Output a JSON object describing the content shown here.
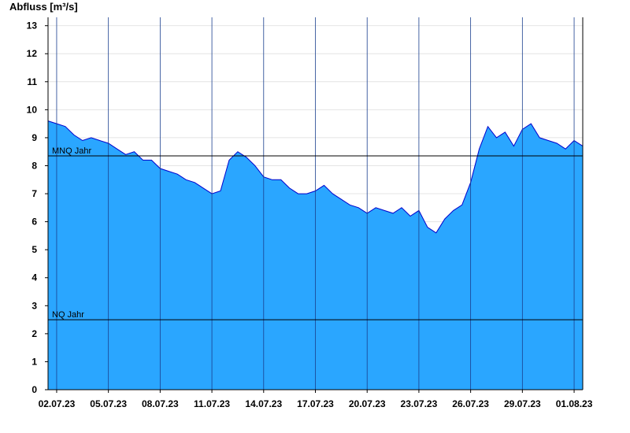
{
  "chart_data": {
    "type": "area",
    "ylabel": "Abfluss [m³/s]",
    "xlabel": "",
    "title": "",
    "ylim": [
      0,
      13.3
    ],
    "yticks": [
      0,
      1,
      2,
      3,
      4,
      5,
      6,
      7,
      8,
      9,
      10,
      11,
      12,
      13
    ],
    "xlim": [
      "2023-07-01T12:00",
      "2023-08-01T12:00"
    ],
    "xticks": [
      {
        "label": "02.07.23",
        "date": "2023-07-02"
      },
      {
        "label": "05.07.23",
        "date": "2023-07-05"
      },
      {
        "label": "08.07.23",
        "date": "2023-07-08"
      },
      {
        "label": "11.07.23",
        "date": "2023-07-11"
      },
      {
        "label": "14.07.23",
        "date": "2023-07-14"
      },
      {
        "label": "17.07.23",
        "date": "2023-07-17"
      },
      {
        "label": "20.07.23",
        "date": "2023-07-20"
      },
      {
        "label": "23.07.23",
        "date": "2023-07-23"
      },
      {
        "label": "26.07.23",
        "date": "2023-07-26"
      },
      {
        "label": "29.07.23",
        "date": "2023-07-29"
      },
      {
        "label": "01.08.23",
        "date": "2023-08-01"
      }
    ],
    "reference_lines": [
      {
        "label": "MNQ Jahr",
        "value": 8.35
      },
      {
        "label": "NQ Jahr",
        "value": 2.5
      }
    ],
    "series": [
      {
        "color": "#2aa6ff",
        "line_color": "#0000cc",
        "x": [
          "2023-07-01T12:00",
          "2023-07-02T00:00",
          "2023-07-02T12:00",
          "2023-07-03T00:00",
          "2023-07-03T12:00",
          "2023-07-04T00:00",
          "2023-07-04T12:00",
          "2023-07-05T00:00",
          "2023-07-05T12:00",
          "2023-07-06T00:00",
          "2023-07-06T12:00",
          "2023-07-07T00:00",
          "2023-07-07T12:00",
          "2023-07-08T00:00",
          "2023-07-08T12:00",
          "2023-07-09T00:00",
          "2023-07-09T12:00",
          "2023-07-10T00:00",
          "2023-07-10T12:00",
          "2023-07-11T00:00",
          "2023-07-11T12:00",
          "2023-07-12T00:00",
          "2023-07-12T12:00",
          "2023-07-13T00:00",
          "2023-07-13T12:00",
          "2023-07-14T00:00",
          "2023-07-14T12:00",
          "2023-07-15T00:00",
          "2023-07-15T12:00",
          "2023-07-16T00:00",
          "2023-07-16T12:00",
          "2023-07-17T00:00",
          "2023-07-17T12:00",
          "2023-07-18T00:00",
          "2023-07-18T12:00",
          "2023-07-19T00:00",
          "2023-07-19T12:00",
          "2023-07-20T00:00",
          "2023-07-20T12:00",
          "2023-07-21T00:00",
          "2023-07-21T12:00",
          "2023-07-22T00:00",
          "2023-07-22T12:00",
          "2023-07-23T00:00",
          "2023-07-23T12:00",
          "2023-07-24T00:00",
          "2023-07-24T12:00",
          "2023-07-25T00:00",
          "2023-07-25T12:00",
          "2023-07-26T00:00",
          "2023-07-26T12:00",
          "2023-07-27T00:00",
          "2023-07-27T12:00",
          "2023-07-28T00:00",
          "2023-07-28T12:00",
          "2023-07-29T00:00",
          "2023-07-29T12:00",
          "2023-07-30T00:00",
          "2023-07-30T12:00",
          "2023-07-31T00:00",
          "2023-07-31T12:00",
          "2023-08-01T00:00",
          "2023-08-01T12:00"
        ],
        "values": [
          9.6,
          9.5,
          9.4,
          9.1,
          8.9,
          9.0,
          8.9,
          8.8,
          8.6,
          8.4,
          8.5,
          8.2,
          8.2,
          7.9,
          7.8,
          7.7,
          7.5,
          7.4,
          7.2,
          7.0,
          7.1,
          8.2,
          8.5,
          8.3,
          8.0,
          7.6,
          7.5,
          7.5,
          7.2,
          7.0,
          7.0,
          7.1,
          7.3,
          7.0,
          6.8,
          6.6,
          6.5,
          6.3,
          6.5,
          6.4,
          6.3,
          6.5,
          6.2,
          6.4,
          5.8,
          5.6,
          6.1,
          6.4,
          6.6,
          7.4,
          8.6,
          9.4,
          9.0,
          9.2,
          8.7,
          9.3,
          9.5,
          9.0,
          8.9,
          8.8,
          8.6,
          8.9,
          8.7
        ]
      }
    ]
  }
}
